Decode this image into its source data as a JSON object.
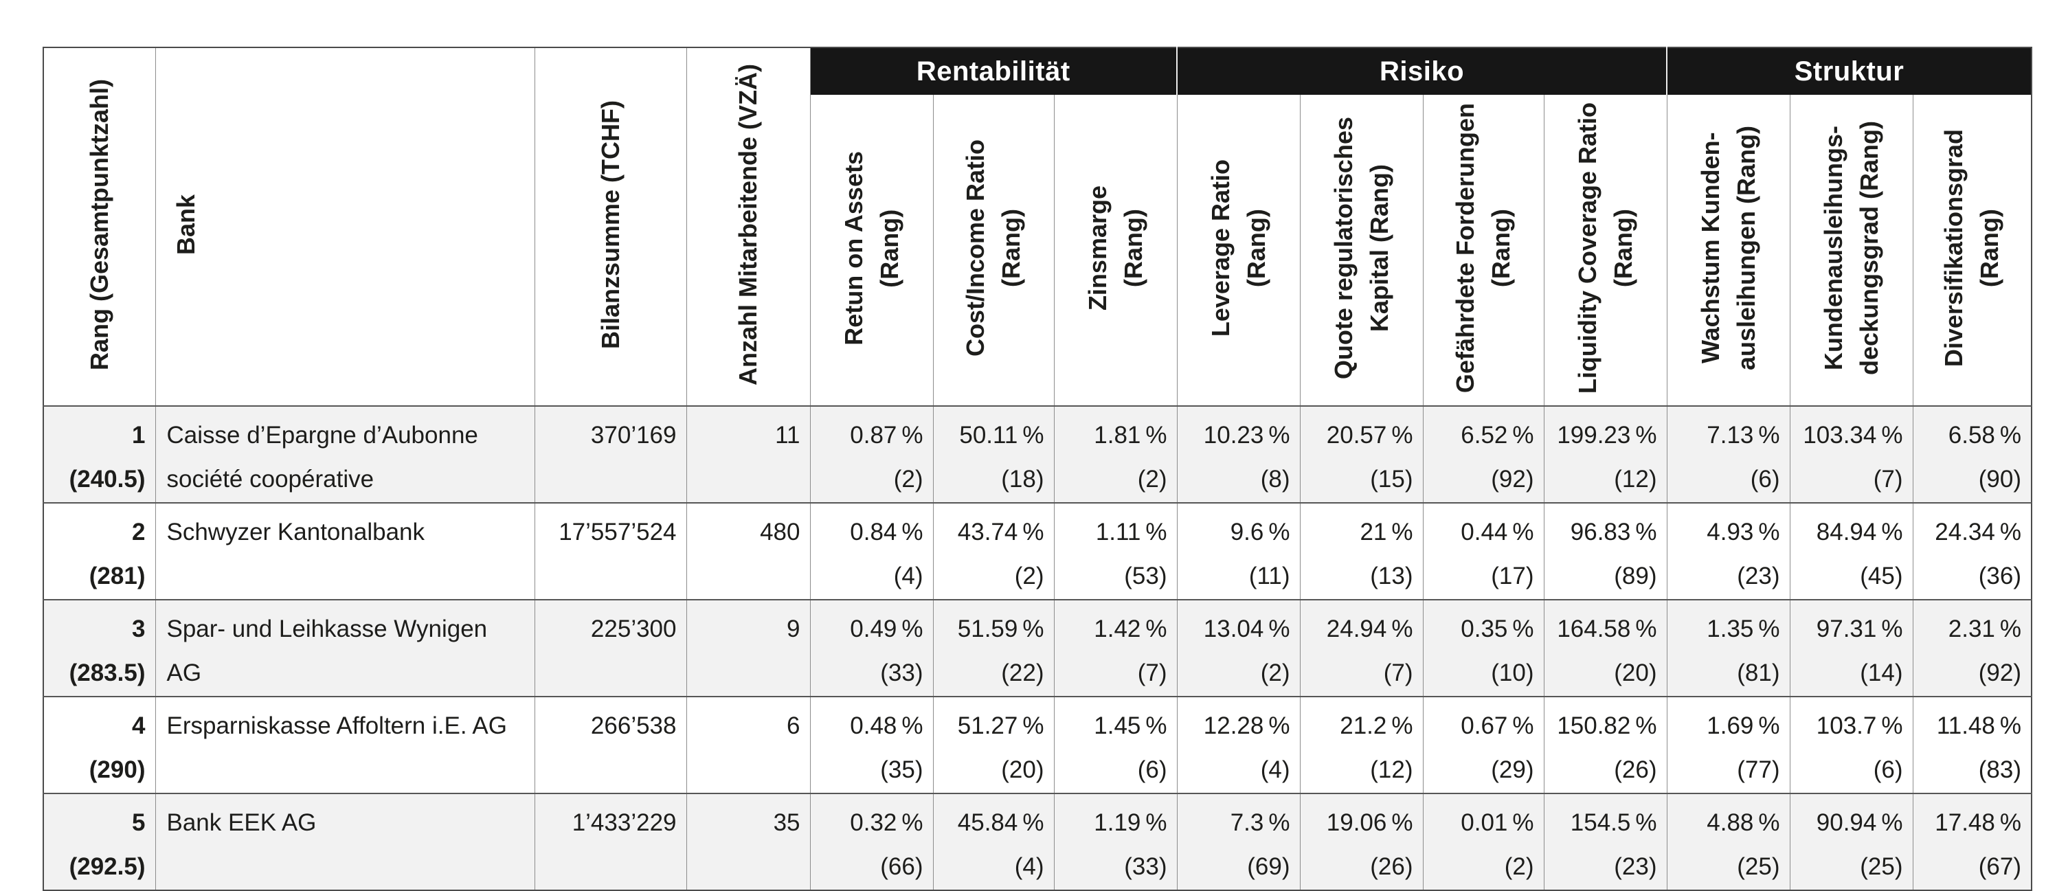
{
  "table": {
    "corner_headers": [
      "Rang (Gesamtpunktzahl)",
      "Bank",
      "Bilanzsumme (TCHF)",
      "Anzahl Mitarbeitende (VZÄ)"
    ],
    "groups": [
      {
        "label": "Rentabilität",
        "span": 3
      },
      {
        "label": "Risiko",
        "span": 4
      },
      {
        "label": "Struktur",
        "span": 3
      }
    ],
    "metric_headers": [
      "Retun on Assets\n(Rang)",
      "Cost/Income Ratio\n(Rang)",
      "Zinsmarge\n(Rang)",
      "Leverage Ratio\n(Rang)",
      "Quote regulatorisches\nKapital (Rang)",
      "Gefährdete Forderungen\n(Rang)",
      "Liquidity Coverage Ratio\n(Rang)",
      "Wachstum Kunden-\nausleihungen (Rang)",
      "Kundenausleihungs-\ndeckungsgrad (Rang)",
      "Diversifikationsgrad\n(Rang)"
    ],
    "rows": [
      {
        "rank": "1",
        "points": "(240.5)",
        "bank": "Caisse d’Epargne d’Aubonne\nsociété coopérative",
        "bilanzsumme": "370’169",
        "mitarbeitende": "11",
        "metrics": [
          {
            "value": "0.87 %",
            "rank": "(2)"
          },
          {
            "value": "50.11 %",
            "rank": "(18)"
          },
          {
            "value": "1.81 %",
            "rank": "(2)"
          },
          {
            "value": "10.23 %",
            "rank": "(8)"
          },
          {
            "value": "20.57 %",
            "rank": "(15)"
          },
          {
            "value": "6.52 %",
            "rank": "(92)"
          },
          {
            "value": "199.23 %",
            "rank": "(12)"
          },
          {
            "value": "7.13 %",
            "rank": "(6)"
          },
          {
            "value": "103.34 %",
            "rank": "(7)"
          },
          {
            "value": "6.58 %",
            "rank": "(90)"
          }
        ]
      },
      {
        "rank": "2",
        "points": "(281)",
        "bank": "Schwyzer Kantonalbank",
        "bilanzsumme": "17’557’524",
        "mitarbeitende": "480",
        "metrics": [
          {
            "value": "0.84 %",
            "rank": "(4)"
          },
          {
            "value": "43.74 %",
            "rank": "(2)"
          },
          {
            "value": "1.11 %",
            "rank": "(53)"
          },
          {
            "value": "9.6 %",
            "rank": "(11)"
          },
          {
            "value": "21 %",
            "rank": "(13)"
          },
          {
            "value": "0.44 %",
            "rank": "(17)"
          },
          {
            "value": "96.83 %",
            "rank": "(89)"
          },
          {
            "value": "4.93 %",
            "rank": "(23)"
          },
          {
            "value": "84.94 %",
            "rank": "(45)"
          },
          {
            "value": "24.34 %",
            "rank": "(36)"
          }
        ]
      },
      {
        "rank": "3",
        "points": "(283.5)",
        "bank": "Spar- und Leihkasse Wynigen AG",
        "bilanzsumme": "225’300",
        "mitarbeitende": "9",
        "metrics": [
          {
            "value": "0.49 %",
            "rank": "(33)"
          },
          {
            "value": "51.59 %",
            "rank": "(22)"
          },
          {
            "value": "1.42 %",
            "rank": "(7)"
          },
          {
            "value": "13.04 %",
            "rank": "(2)"
          },
          {
            "value": "24.94 %",
            "rank": "(7)"
          },
          {
            "value": "0.35 %",
            "rank": "(10)"
          },
          {
            "value": "164.58 %",
            "rank": "(20)"
          },
          {
            "value": "1.35 %",
            "rank": "(81)"
          },
          {
            "value": "97.31 %",
            "rank": "(14)"
          },
          {
            "value": "2.31 %",
            "rank": "(92)"
          }
        ]
      },
      {
        "rank": "4",
        "points": "(290)",
        "bank": "Ersparniskasse Affoltern i.E. AG",
        "bilanzsumme": "266’538",
        "mitarbeitende": "6",
        "metrics": [
          {
            "value": "0.48 %",
            "rank": "(35)"
          },
          {
            "value": "51.27 %",
            "rank": "(20)"
          },
          {
            "value": "1.45 %",
            "rank": "(6)"
          },
          {
            "value": "12.28 %",
            "rank": "(4)"
          },
          {
            "value": "21.2 %",
            "rank": "(12)"
          },
          {
            "value": "0.67 %",
            "rank": "(29)"
          },
          {
            "value": "150.82 %",
            "rank": "(26)"
          },
          {
            "value": "1.69 %",
            "rank": "(77)"
          },
          {
            "value": "103.7 %",
            "rank": "(6)"
          },
          {
            "value": "11.48 %",
            "rank": "(83)"
          }
        ]
      },
      {
        "rank": "5",
        "points": "(292.5)",
        "bank": "Bank EEK AG",
        "bilanzsumme": "1’433’229",
        "mitarbeitende": "35",
        "metrics": [
          {
            "value": "0.32 %",
            "rank": "(66)"
          },
          {
            "value": "45.84 %",
            "rank": "(4)"
          },
          {
            "value": "1.19 %",
            "rank": "(33)"
          },
          {
            "value": "7.3 %",
            "rank": "(69)"
          },
          {
            "value": "19.06 %",
            "rank": "(26)"
          },
          {
            "value": "0.01 %",
            "rank": "(2)"
          },
          {
            "value": "154.5 %",
            "rank": "(23)"
          },
          {
            "value": "4.88 %",
            "rank": "(25)"
          },
          {
            "value": "90.94 %",
            "rank": "(25)"
          },
          {
            "value": "17.48 %",
            "rank": "(67)"
          }
        ]
      }
    ],
    "colors": {
      "band_bg": "#161616",
      "band_text": "#ffffff",
      "stripe_bg": "#f2f2f2",
      "grid_vertical": "#8c8c8c",
      "grid_horizontal": "#565656",
      "outer_border": "#4b4b4b",
      "text": "#1d1d1b"
    }
  }
}
